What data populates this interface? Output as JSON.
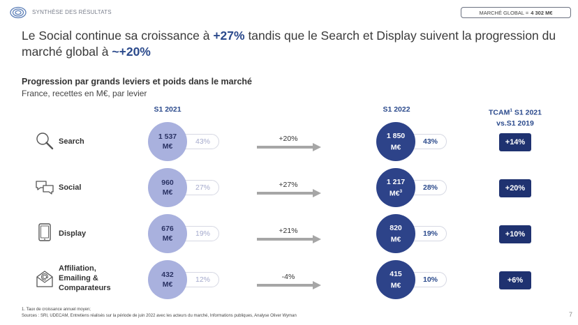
{
  "header": {
    "section_label": "SYNTHÈSE DES RÉSULTATS",
    "market_label": "MARCHÉ GLOBAL =",
    "market_value": "4 302 M€"
  },
  "headline": {
    "part1": "Le Social continue sa croissance à ",
    "highlight1": "+27%",
    "part2": " tandis que le Search et Display suivent la progression du marché global à ",
    "highlight2": "~+20%"
  },
  "subtitle": "Progression par grands leviers et poids dans le marché",
  "subsubtitle": "France, recettes en M€, par levier",
  "columns": {
    "s1_2021": "S1 2021",
    "s1_2022": "S1 2022",
    "tcam_line1": "TCAM",
    "tcam_sup": "1",
    "tcam_line1_rest": " S1 2021",
    "tcam_line2": "vs.S1 2019"
  },
  "rows": [
    {
      "label": "Search",
      "icon": "magnifier-icon",
      "v2021": "1 537",
      "unit2021": "M€",
      "share2021": "43%",
      "growth": "+20%",
      "v2022": "1 850",
      "unit2022": "M€",
      "unit2022_sup": "",
      "share2022": "43%",
      "tcam": "+14%"
    },
    {
      "label": "Social",
      "icon": "chat-bubbles-icon",
      "v2021": "960",
      "unit2021": "M€",
      "share2021": "27%",
      "growth": "+27%",
      "v2022": "1 217",
      "unit2022": "M€",
      "unit2022_sup": "3",
      "share2022": "28%",
      "tcam": "+20%"
    },
    {
      "label": "Display",
      "icon": "tablet-icon",
      "v2021": "676",
      "unit2021": "M€",
      "share2021": "19%",
      "growth": "+21%",
      "v2022": "820",
      "unit2022": "M€",
      "unit2022_sup": "",
      "share2022": "19%",
      "tcam": "+10%"
    },
    {
      "label_lines": [
        "Affiliation,",
        "Emailing &",
        "Comparateurs"
      ],
      "icon": "envelope-at-icon",
      "v2021": "432",
      "unit2021": "M€",
      "share2021": "12%",
      "growth": "-4%",
      "v2022": "415",
      "unit2022": "M€",
      "unit2022_sup": "",
      "share2022": "10%",
      "tcam": "+6%"
    }
  ],
  "footnotes": {
    "note1": "1. Taux de croissance annuel moyen;",
    "sources": "Sources : SRI, UDECAM, Entretiens réalisés sur la période de juin 2022 avec les acteurs du marché, Informations publiques, Analyse Oliver Wyman"
  },
  "page_number": "7",
  "colors": {
    "accent": "#2b4a8c",
    "circle_2021": "#a9b1de",
    "circle_2022": "#2d4389",
    "tcam_box": "#1f3270"
  }
}
